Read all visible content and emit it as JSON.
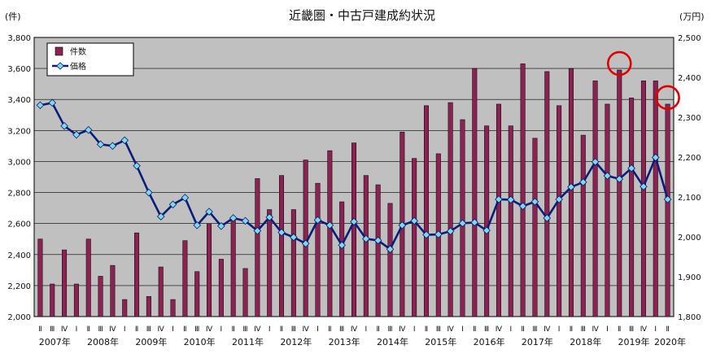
{
  "chart_data": {
    "type": "bar+line",
    "title": "近畿圏・中古戸建成約状況",
    "left_axis": {
      "unit": "(件)",
      "ylim": [
        2000,
        3800
      ],
      "ticks": [
        "2,000",
        "2,200",
        "2,400",
        "2,600",
        "2,800",
        "3,000",
        "3,200",
        "3,400",
        "3,600",
        "3,800"
      ]
    },
    "right_axis": {
      "unit": "(万円)",
      "ylim": [
        1800,
        2500
      ],
      "ticks": [
        "1,800",
        "1,900",
        "2,000",
        "2,100",
        "2,200",
        "2,300",
        "2,400",
        "2,500"
      ]
    },
    "legend": {
      "placement": "top-left",
      "entries": [
        "件数",
        "価格"
      ]
    },
    "quarters": [
      "Ⅱ",
      "Ⅲ",
      "Ⅳ",
      "Ⅰ",
      "Ⅱ",
      "Ⅲ",
      "Ⅳ",
      "Ⅰ",
      "Ⅱ",
      "Ⅲ",
      "Ⅳ",
      "Ⅰ",
      "Ⅱ",
      "Ⅲ",
      "Ⅳ",
      "Ⅰ",
      "Ⅱ",
      "Ⅲ",
      "Ⅳ",
      "Ⅰ",
      "Ⅱ",
      "Ⅲ",
      "Ⅳ",
      "Ⅰ",
      "Ⅱ",
      "Ⅲ",
      "Ⅳ",
      "Ⅰ",
      "Ⅱ",
      "Ⅲ",
      "Ⅳ",
      "Ⅰ",
      "Ⅱ",
      "Ⅲ",
      "Ⅳ",
      "Ⅰ",
      "Ⅱ",
      "Ⅲ",
      "Ⅳ",
      "Ⅰ",
      "Ⅱ",
      "Ⅲ",
      "Ⅳ",
      "Ⅰ",
      "Ⅱ",
      "Ⅲ",
      "Ⅳ",
      "Ⅰ",
      "Ⅱ",
      "Ⅲ",
      "Ⅳ",
      "Ⅰ",
      "Ⅱ"
    ],
    "year_labels": [
      {
        "label": "2007年",
        "index": 1
      },
      {
        "label": "2008年",
        "index": 5
      },
      {
        "label": "2009年",
        "index": 9
      },
      {
        "label": "2010年",
        "index": 13
      },
      {
        "label": "2011年",
        "index": 17
      },
      {
        "label": "2012年",
        "index": 21
      },
      {
        "label": "2013年",
        "index": 25
      },
      {
        "label": "2014年",
        "index": 29
      },
      {
        "label": "2015年",
        "index": 33
      },
      {
        "label": "2016年",
        "index": 37
      },
      {
        "label": "2017年",
        "index": 41
      },
      {
        "label": "2018年",
        "index": 45
      },
      {
        "label": "2019年",
        "index": 49
      },
      {
        "label": "2020年",
        "index": 52
      }
    ],
    "series": [
      {
        "name": "件数",
        "axis": "left",
        "kind": "bar",
        "color": "#8B2252",
        "values": [
          2500,
          2210,
          2430,
          2210,
          2500,
          2260,
          2330,
          2110,
          2540,
          2130,
          2320,
          2110,
          2490,
          2290,
          2600,
          2370,
          2640,
          2310,
          2890,
          2690,
          2910,
          2690,
          3010,
          2860,
          3070,
          2740,
          3120,
          2910,
          2850,
          2730,
          3190,
          3020,
          3360,
          3050,
          3380,
          3270,
          3600,
          3230,
          3370,
          3230,
          3630,
          3150,
          3580,
          3360,
          3600,
          3170,
          3520,
          3370,
          3590,
          3410,
          3520,
          3520,
          3370
        ]
      },
      {
        "name": "価格",
        "axis": "right",
        "kind": "line",
        "color": "#0A1D7A",
        "values": [
          2330,
          2336,
          2278,
          2256,
          2268,
          2232,
          2228,
          2242,
          2178,
          2111,
          2051,
          2081,
          2098,
          2029,
          2063,
          2027,
          2047,
          2040,
          2015,
          2049,
          2011,
          1999,
          1983,
          2042,
          2029,
          1979,
          2038,
          1995,
          1991,
          1969,
          2029,
          2040,
          2005,
          2006,
          2014,
          2034,
          2036,
          2016,
          2094,
          2093,
          2077,
          2088,
          2047,
          2094,
          2125,
          2137,
          2188,
          2153,
          2145,
          2172,
          2126,
          2199,
          2094
        ]
      }
    ],
    "annotations": [
      {
        "type": "circle",
        "color": "#E00000",
        "at_index": 48
      },
      {
        "type": "circle",
        "color": "#E00000",
        "at_index": 52
      }
    ]
  }
}
